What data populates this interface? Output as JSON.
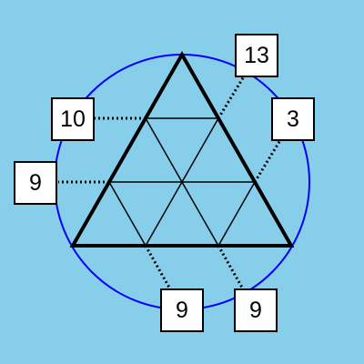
{
  "colors": {
    "background": "#87CEEB",
    "circle": "#0000FF",
    "lines": "#000000",
    "box_fill": "#FFFFFF"
  },
  "labels": {
    "top_right": "13",
    "right": "3",
    "left_upper": "10",
    "left_lower": "9",
    "bottom_left": "9",
    "bottom_right": "9"
  }
}
